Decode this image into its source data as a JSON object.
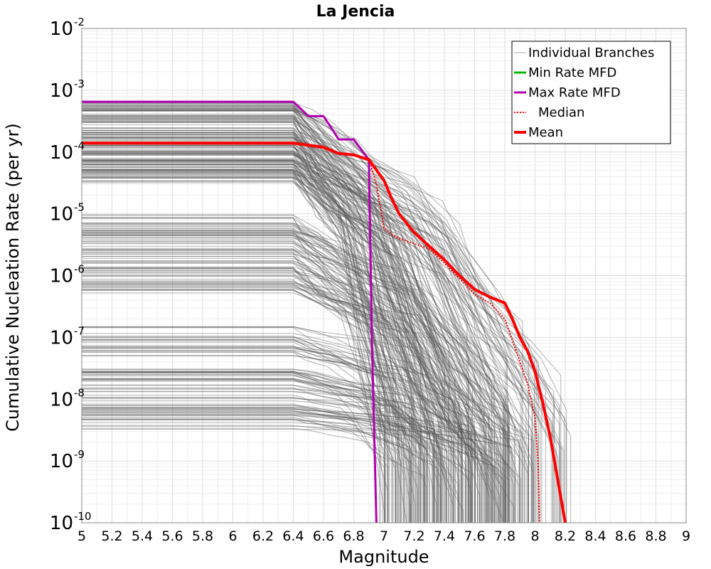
{
  "chart_data": {
    "type": "line",
    "title": "La Jencia",
    "xlabel": "Magnitude",
    "ylabel": "Cumulative Nucleation Rate (per yr)",
    "xlim": [
      5,
      9
    ],
    "ylim": [
      1e-10,
      0.01
    ],
    "yscale": "log",
    "grid": true,
    "legend_position": "top-right",
    "x_ticks": [
      "5",
      "5.2",
      "5.4",
      "5.6",
      "5.8",
      "6",
      "6.2",
      "6.4",
      "6.6",
      "6.8",
      "7",
      "7.2",
      "7.4",
      "7.6",
      "7.8",
      "8",
      "8.2",
      "8.4",
      "8.6",
      "8.8",
      "9"
    ],
    "y_ticks": [
      {
        "base": "10",
        "exp": "-10",
        "value": 1e-10
      },
      {
        "base": "10",
        "exp": "-9",
        "value": 1e-09
      },
      {
        "base": "10",
        "exp": "-8",
        "value": 1e-08
      },
      {
        "base": "10",
        "exp": "-7",
        "value": 1e-07
      },
      {
        "base": "10",
        "exp": "-6",
        "value": 1e-06
      },
      {
        "base": "10",
        "exp": "-5",
        "value": 1e-05
      },
      {
        "base": "10",
        "exp": "-4",
        "value": 0.0001
      },
      {
        "base": "10",
        "exp": "-3",
        "value": 0.001
      },
      {
        "base": "10",
        "exp": "-2",
        "value": 0.01
      }
    ],
    "colors": {
      "individual": "#555555",
      "min": "#00b000",
      "max": "#b000b0",
      "median": "#ff0000",
      "mean": "#ff0000"
    },
    "legend": [
      "Individual Branches",
      "Min Rate MFD",
      "Max Rate MFD",
      "Median",
      "Mean"
    ],
    "series": [
      {
        "name": "Max Rate MFD",
        "x": [
          5.0,
          6.4,
          6.45,
          6.5,
          6.55,
          6.6,
          6.65,
          6.7,
          6.75,
          6.8,
          6.85,
          6.9,
          6.92,
          6.95
        ],
        "y": [
          0.00065,
          0.00065,
          0.0005,
          0.00038,
          0.00038,
          0.00038,
          0.00025,
          0.00016,
          0.00016,
          0.00016,
          0.00011,
          7.5e-05,
          1e-07,
          1e-10
        ]
      },
      {
        "name": "Min Rate MFD",
        "x": [],
        "y": []
      },
      {
        "name": "Median",
        "x": [
          5.0,
          6.4,
          6.6,
          6.7,
          6.8,
          6.9,
          6.95,
          7.0,
          7.05,
          7.1,
          7.2,
          7.3,
          7.4,
          7.5,
          7.6,
          7.7,
          7.8,
          7.85,
          7.9,
          7.95,
          8.0,
          8.02,
          8.03
        ],
        "y": [
          0.000135,
          0.000135,
          0.000115,
          9.2e-05,
          8.8e-05,
          7.8e-05,
          3e-05,
          6e-06,
          4.6e-06,
          4e-06,
          3.3e-06,
          2.7e-06,
          1.6e-06,
          9e-07,
          5e-07,
          3.6e-07,
          2e-07,
          9e-08,
          4e-08,
          1.8e-08,
          5e-09,
          1e-09,
          1e-10
        ]
      },
      {
        "name": "Mean",
        "x": [
          5.0,
          6.4,
          6.6,
          6.7,
          6.8,
          6.9,
          7.0,
          7.05,
          7.1,
          7.2,
          7.3,
          7.4,
          7.5,
          7.6,
          7.7,
          7.8,
          7.85,
          7.9,
          7.95,
          8.0,
          8.05,
          8.1,
          8.15,
          8.2
        ],
        "y": [
          0.00014,
          0.00014,
          0.00012,
          9.5e-05,
          9e-05,
          7.5e-05,
          3.5e-05,
          1.8e-05,
          1e-05,
          5e-06,
          3e-06,
          1.8e-06,
          1e-06,
          6e-07,
          4.5e-07,
          3.6e-07,
          2e-07,
          1e-07,
          6e-08,
          2.8e-08,
          9e-09,
          2.5e-09,
          5e-10,
          1e-10
        ]
      }
    ]
  }
}
